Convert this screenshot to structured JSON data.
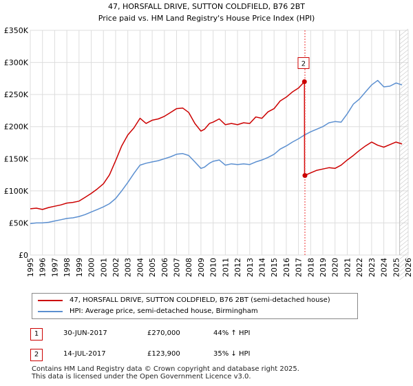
{
  "chart_data": {
    "type": "line",
    "title": "47, HORSFALL DRIVE, SUTTON COLDFIELD, B76 2BT",
    "subtitle": "Price paid vs. HM Land Registry's House Price Index (HPI)",
    "xlim": [
      1995,
      2026
    ],
    "ylim": [
      0,
      350000
    ],
    "y_ticks": [
      0,
      50000,
      100000,
      150000,
      200000,
      250000,
      300000,
      350000
    ],
    "y_tick_labels": [
      "£0",
      "£50K",
      "£100K",
      "£150K",
      "£200K",
      "£250K",
      "£300K",
      "£350K"
    ],
    "x_ticks": [
      1995,
      1996,
      1997,
      1998,
      1999,
      2000,
      2001,
      2002,
      2003,
      2004,
      2005,
      2006,
      2007,
      2008,
      2009,
      2010,
      2011,
      2012,
      2013,
      2014,
      2015,
      2016,
      2017,
      2018,
      2019,
      2020,
      2021,
      2022,
      2023,
      2024,
      2025,
      2026
    ],
    "grid": true,
    "series": [
      {
        "name": "47, HORSFALL DRIVE, SUTTON COLDFIELD, B76 2BT (semi-detached house)",
        "color": "#cc0000",
        "x": [
          1995,
          1995.5,
          1996,
          1996.5,
          1997,
          1997.5,
          1998,
          1998.5,
          1999,
          1999.5,
          2000,
          2000.5,
          2001,
          2001.5,
          2002,
          2002.5,
          2003,
          2003.5,
          2004,
          2004.5,
          2005,
          2005.5,
          2006,
          2006.5,
          2007,
          2007.5,
          2008,
          2008.5,
          2009,
          2009.3,
          2009.7,
          2010,
          2010.5,
          2011,
          2011.5,
          2012,
          2012.5,
          2013,
          2013.5,
          2014,
          2014.5,
          2015,
          2015.5,
          2016,
          2016.5,
          2017,
          2017.49,
          2017.5,
          2018,
          2018.5,
          2019,
          2019.5,
          2020,
          2020.5,
          2021,
          2021.5,
          2022,
          2022.5,
          2023,
          2023.5,
          2024,
          2024.5,
          2025,
          2025.5
        ],
        "values": [
          72000,
          73000,
          71000,
          74000,
          76000,
          78000,
          81000,
          82000,
          84000,
          90000,
          96000,
          103000,
          111000,
          125000,
          147000,
          170000,
          187000,
          198000,
          213000,
          205000,
          210000,
          212000,
          216000,
          222000,
          228000,
          229000,
          222000,
          205000,
          193000,
          196000,
          205000,
          207000,
          212000,
          203000,
          205000,
          203000,
          206000,
          205000,
          215000,
          213000,
          223000,
          228000,
          240000,
          246000,
          254000,
          260000,
          270000,
          123900,
          128000,
          132000,
          134000,
          136000,
          135000,
          140000,
          148000,
          155000,
          163000,
          170000,
          176000,
          171000,
          168000,
          172000,
          176000,
          173000
        ]
      },
      {
        "name": "HPI: Average price, semi-detached house, Birmingham",
        "color": "#5b8fd0",
        "x": [
          1995,
          1995.5,
          1996,
          1996.5,
          1997,
          1997.5,
          1998,
          1998.5,
          1999,
          1999.5,
          2000,
          2000.5,
          2001,
          2001.5,
          2002,
          2002.5,
          2003,
          2003.5,
          2004,
          2004.5,
          2005,
          2005.5,
          2006,
          2006.5,
          2007,
          2007.5,
          2008,
          2008.5,
          2009,
          2009.3,
          2009.7,
          2010,
          2010.5,
          2011,
          2011.5,
          2012,
          2012.5,
          2013,
          2013.5,
          2014,
          2014.5,
          2015,
          2015.5,
          2016,
          2016.5,
          2017,
          2017.5,
          2018,
          2018.5,
          2019,
          2019.5,
          2020,
          2020.5,
          2021,
          2021.5,
          2022,
          2022.5,
          2023,
          2023.5,
          2024,
          2024.5,
          2025,
          2025.5
        ],
        "values": [
          49000,
          50000,
          50000,
          51000,
          53000,
          55000,
          57000,
          58000,
          60000,
          63000,
          67000,
          71000,
          75000,
          80000,
          88000,
          100000,
          113000,
          127000,
          140000,
          143000,
          145000,
          147000,
          150000,
          153000,
          157000,
          158000,
          155000,
          145000,
          135000,
          137000,
          143000,
          146000,
          148000,
          140000,
          142000,
          141000,
          142000,
          141000,
          145000,
          148000,
          152000,
          157000,
          165000,
          170000,
          176000,
          181000,
          187000,
          192000,
          196000,
          200000,
          206000,
          208000,
          207000,
          220000,
          235000,
          243000,
          254000,
          265000,
          272000,
          262000,
          263000,
          268000,
          265000
        ]
      }
    ],
    "annotations": [
      {
        "label": "2",
        "x": 2017.53,
        "y": 270000
      }
    ],
    "sales": [
      {
        "x": 2017.49,
        "y": 270000
      },
      {
        "x": 2017.53,
        "y": 123900
      }
    ],
    "vertical_marker_x": 2017.53
  },
  "legend": {
    "item1": "47, HORSFALL DRIVE, SUTTON COLDFIELD, B76 2BT (semi-detached house)",
    "item2": "HPI: Average price, semi-detached house, Birmingham"
  },
  "transactions": [
    {
      "num": "1",
      "date": "30-JUN-2017",
      "price": "£270,000",
      "hpi": "44% ↑ HPI"
    },
    {
      "num": "2",
      "date": "14-JUL-2017",
      "price": "£123,900",
      "hpi": "35% ↓ HPI"
    }
  ],
  "footer": {
    "line1": "Contains HM Land Registry data © Crown copyright and database right 2025.",
    "line2": "This data is licensed under the Open Government Licence v3.0."
  }
}
